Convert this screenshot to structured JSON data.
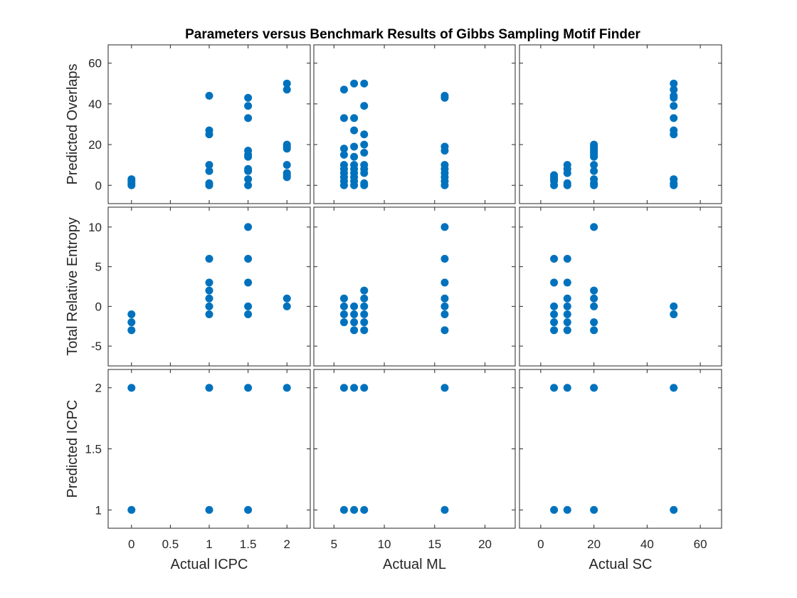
{
  "figure": {
    "title": "Parameters versus Benchmark Results of Gibbs Sampling Motif Finder",
    "marker_color": "#0072BD"
  },
  "chart_data": {
    "type": "scatter",
    "title": "Parameters versus Benchmark Results of Gibbs Sampling Motif Finder",
    "x_axes": [
      {
        "label": "Actual ICPC",
        "lim": [
          -0.3,
          2.3
        ],
        "ticks": [
          0,
          0.5,
          1,
          1.5,
          2
        ],
        "tick_labels": [
          "0",
          "0.5",
          "1",
          "1.5",
          "2"
        ]
      },
      {
        "label": "Actual ML",
        "lim": [
          3,
          23
        ],
        "ticks": [
          5,
          10,
          15,
          20
        ],
        "tick_labels": [
          "5",
          "10",
          "15",
          "20"
        ]
      },
      {
        "label": "Actual SC",
        "lim": [
          -8,
          68
        ],
        "ticks": [
          0,
          20,
          40,
          60
        ],
        "tick_labels": [
          "0",
          "20",
          "40",
          "60"
        ]
      }
    ],
    "y_axes": [
      {
        "label": "Predicted Overlaps",
        "lim": [
          -9,
          69
        ],
        "ticks": [
          0,
          20,
          40,
          60
        ],
        "tick_labels": [
          "0",
          "20",
          "40",
          "60"
        ]
      },
      {
        "label": "Total Relative Entropy",
        "lim": [
          -7.5,
          12.5
        ],
        "ticks": [
          -5,
          0,
          5,
          10
        ],
        "tick_labels": [
          "-5",
          "0",
          "5",
          "10"
        ]
      },
      {
        "label": "Predicted ICPC",
        "lim": [
          0.85,
          2.15
        ],
        "ticks": [
          1,
          1.5,
          2
        ],
        "tick_labels": [
          "1",
          "1.5",
          "2"
        ]
      }
    ],
    "panels": [
      {
        "row": 0,
        "col": 0,
        "points": [
          [
            0,
            0
          ],
          [
            0,
            1
          ],
          [
            0,
            2
          ],
          [
            0,
            3
          ],
          [
            1,
            0
          ],
          [
            1,
            1
          ],
          [
            1,
            7
          ],
          [
            1,
            10
          ],
          [
            1,
            25
          ],
          [
            1,
            27
          ],
          [
            1,
            44
          ],
          [
            1.5,
            0
          ],
          [
            1.5,
            3
          ],
          [
            1.5,
            7
          ],
          [
            1.5,
            8
          ],
          [
            1.5,
            14
          ],
          [
            1.5,
            15
          ],
          [
            1.5,
            17
          ],
          [
            1.5,
            33
          ],
          [
            1.5,
            39
          ],
          [
            1.5,
            43
          ],
          [
            2,
            4
          ],
          [
            2,
            5
          ],
          [
            2,
            6
          ],
          [
            2,
            10
          ],
          [
            2,
            18
          ],
          [
            2,
            19
          ],
          [
            2,
            20
          ],
          [
            2,
            47
          ],
          [
            2,
            50
          ]
        ]
      },
      {
        "row": 0,
        "col": 1,
        "points": [
          [
            6,
            0
          ],
          [
            6,
            2
          ],
          [
            6,
            4
          ],
          [
            6,
            6
          ],
          [
            6,
            8
          ],
          [
            6,
            10
          ],
          [
            6,
            15
          ],
          [
            6,
            18
          ],
          [
            6,
            33
          ],
          [
            6,
            47
          ],
          [
            7,
            0
          ],
          [
            7,
            2
          ],
          [
            7,
            4
          ],
          [
            7,
            6
          ],
          [
            7,
            8
          ],
          [
            7,
            10
          ],
          [
            7,
            14
          ],
          [
            7,
            19
          ],
          [
            7,
            27
          ],
          [
            7,
            33
          ],
          [
            7,
            50
          ],
          [
            8,
            0
          ],
          [
            8,
            1
          ],
          [
            8,
            6
          ],
          [
            8,
            8
          ],
          [
            8,
            10
          ],
          [
            8,
            16
          ],
          [
            8,
            20
          ],
          [
            8,
            25
          ],
          [
            8,
            39
          ],
          [
            8,
            50
          ],
          [
            16,
            0
          ],
          [
            16,
            2
          ],
          [
            16,
            4
          ],
          [
            16,
            6
          ],
          [
            16,
            8
          ],
          [
            16,
            10
          ],
          [
            16,
            17
          ],
          [
            16,
            19
          ],
          [
            16,
            43
          ],
          [
            16,
            44
          ]
        ]
      },
      {
        "row": 0,
        "col": 2,
        "points": [
          [
            5,
            0
          ],
          [
            5,
            2
          ],
          [
            5,
            3
          ],
          [
            5,
            4
          ],
          [
            5,
            5
          ],
          [
            10,
            0
          ],
          [
            10,
            1
          ],
          [
            10,
            6
          ],
          [
            10,
            8
          ],
          [
            10,
            10
          ],
          [
            20,
            0
          ],
          [
            20,
            1
          ],
          [
            20,
            3
          ],
          [
            20,
            7
          ],
          [
            20,
            10
          ],
          [
            20,
            14
          ],
          [
            20,
            15
          ],
          [
            20,
            16
          ],
          [
            20,
            17
          ],
          [
            20,
            18
          ],
          [
            20,
            19
          ],
          [
            20,
            20
          ],
          [
            50,
            0
          ],
          [
            50,
            1
          ],
          [
            50,
            3
          ],
          [
            50,
            25
          ],
          [
            50,
            27
          ],
          [
            50,
            33
          ],
          [
            50,
            39
          ],
          [
            50,
            43
          ],
          [
            50,
            44
          ],
          [
            50,
            47
          ],
          [
            50,
            50
          ]
        ]
      },
      {
        "row": 1,
        "col": 0,
        "points": [
          [
            0,
            -1
          ],
          [
            0,
            -2
          ],
          [
            0,
            -3
          ],
          [
            1,
            -1
          ],
          [
            1,
            0
          ],
          [
            1,
            1
          ],
          [
            1,
            2
          ],
          [
            1,
            3
          ],
          [
            1,
            6
          ],
          [
            1.5,
            -1
          ],
          [
            1.5,
            0
          ],
          [
            1.5,
            3
          ],
          [
            1.5,
            6
          ],
          [
            1.5,
            10
          ],
          [
            2,
            0
          ],
          [
            2,
            1
          ]
        ]
      },
      {
        "row": 1,
        "col": 1,
        "points": [
          [
            6,
            -2
          ],
          [
            6,
            -1
          ],
          [
            6,
            0
          ],
          [
            6,
            1
          ],
          [
            7,
            -3
          ],
          [
            7,
            -2
          ],
          [
            7,
            -1
          ],
          [
            7,
            0
          ],
          [
            8,
            -3
          ],
          [
            8,
            -2
          ],
          [
            8,
            -1
          ],
          [
            8,
            0
          ],
          [
            8,
            1
          ],
          [
            8,
            2
          ],
          [
            16,
            -3
          ],
          [
            16,
            -1
          ],
          [
            16,
            0
          ],
          [
            16,
            1
          ],
          [
            16,
            3
          ],
          [
            16,
            6
          ],
          [
            16,
            10
          ]
        ]
      },
      {
        "row": 1,
        "col": 2,
        "points": [
          [
            5,
            -3
          ],
          [
            5,
            -2
          ],
          [
            5,
            -1
          ],
          [
            5,
            0
          ],
          [
            5,
            3
          ],
          [
            5,
            6
          ],
          [
            10,
            -3
          ],
          [
            10,
            -2
          ],
          [
            10,
            -1
          ],
          [
            10,
            0
          ],
          [
            10,
            1
          ],
          [
            10,
            3
          ],
          [
            10,
            6
          ],
          [
            20,
            -3
          ],
          [
            20,
            -2
          ],
          [
            20,
            0
          ],
          [
            20,
            1
          ],
          [
            20,
            2
          ],
          [
            20,
            10
          ],
          [
            50,
            -1
          ],
          [
            50,
            0
          ]
        ]
      },
      {
        "row": 2,
        "col": 0,
        "points": [
          [
            0,
            1
          ],
          [
            0,
            2
          ],
          [
            1,
            1
          ],
          [
            1,
            2
          ],
          [
            1.5,
            1
          ],
          [
            1.5,
            2
          ],
          [
            2,
            2
          ]
        ]
      },
      {
        "row": 2,
        "col": 1,
        "points": [
          [
            6,
            1
          ],
          [
            6,
            2
          ],
          [
            7,
            1
          ],
          [
            7,
            2
          ],
          [
            8,
            1
          ],
          [
            8,
            2
          ],
          [
            16,
            1
          ],
          [
            16,
            2
          ]
        ]
      },
      {
        "row": 2,
        "col": 2,
        "points": [
          [
            5,
            1
          ],
          [
            5,
            2
          ],
          [
            10,
            1
          ],
          [
            10,
            2
          ],
          [
            20,
            1
          ],
          [
            20,
            2
          ],
          [
            50,
            1
          ],
          [
            50,
            2
          ]
        ]
      }
    ],
    "grid": false,
    "legend": "none"
  }
}
